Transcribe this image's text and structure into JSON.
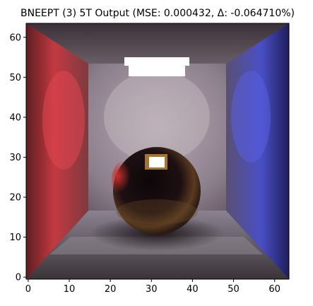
{
  "plot": {
    "title": "BNEEPT (3) 5T Output (MSE: 0.000432, Δ: -0.064710%)",
    "x_ticks": [
      "0",
      "10",
      "20",
      "30",
      "40",
      "50",
      "60"
    ],
    "y_ticks": [
      "0",
      "10",
      "20",
      "30",
      "40",
      "50",
      "60"
    ],
    "x_tick_values": [
      0,
      10,
      20,
      30,
      40,
      50,
      60
    ],
    "y_tick_values": [
      0,
      10,
      20,
      30,
      40,
      50,
      60
    ],
    "image_extent": {
      "x": [
        -0.5,
        63.5
      ],
      "y": [
        -0.5,
        63.5
      ]
    },
    "origin": "lower",
    "scene": "Cornell box: red left wall, blue right wall, white ceiling light, dark glossy sphere in center"
  },
  "colors": {
    "left_wall": "#c0383e",
    "right_wall": "#4a4ec8",
    "back_wall": "#8a8090",
    "light": "#ffffff",
    "sphere": "#1a0e10",
    "floor": "#6e6a72",
    "edge": "#000000"
  }
}
